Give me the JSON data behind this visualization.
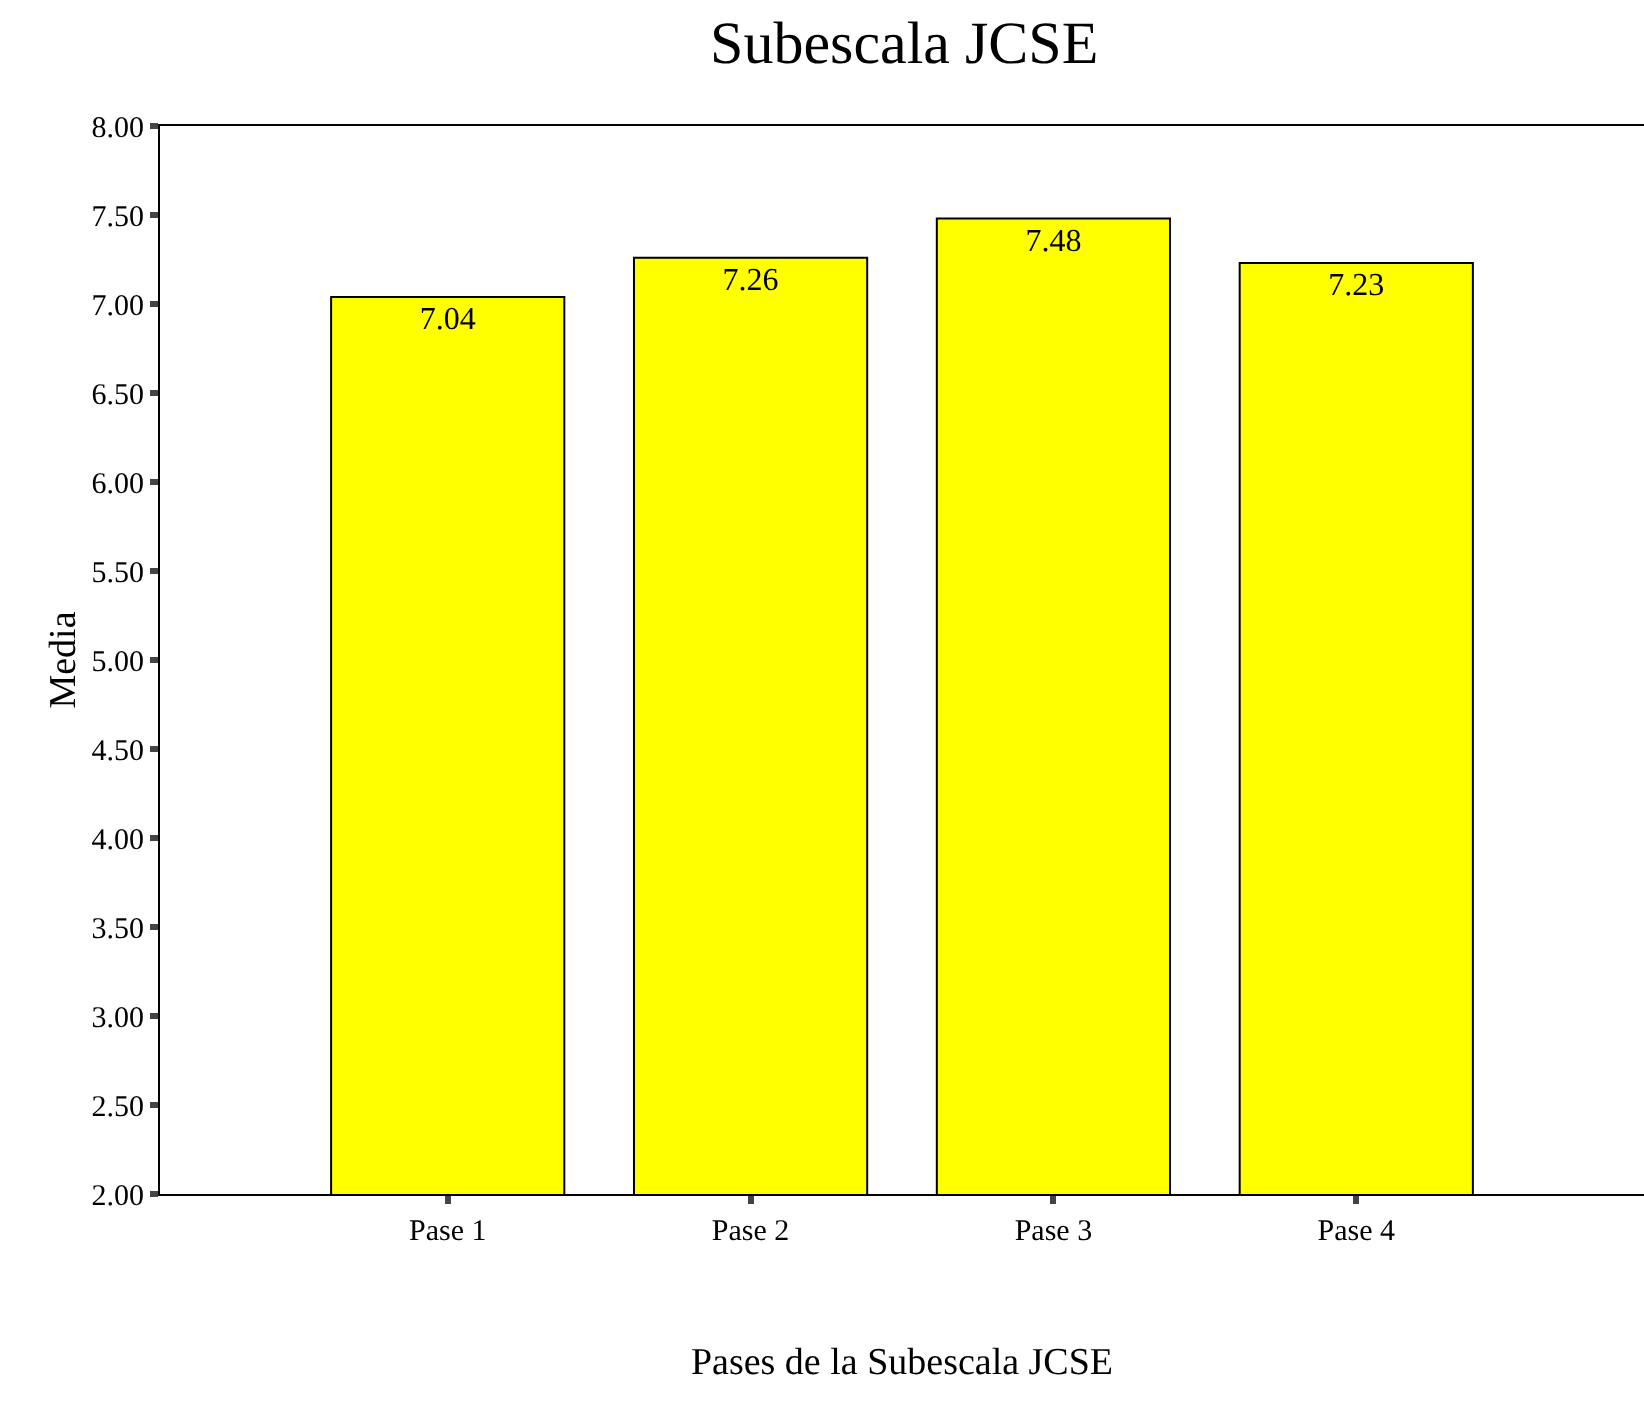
{
  "chart_data": {
    "type": "bar",
    "title": "Subescala JCSE",
    "xlabel": "Pases de la Subescala JCSE",
    "ylabel": "Media",
    "categories": [
      "Pase 1",
      "Pase 2",
      "Pase 3",
      "Pase 4"
    ],
    "values": [
      7.04,
      7.26,
      7.48,
      7.23
    ],
    "color": "#ffff00",
    "ylim": [
      2.0,
      8.0
    ],
    "yticks": [
      {
        "value": 2.0,
        "label": "2.00"
      },
      {
        "value": 2.5,
        "label": "2.50"
      },
      {
        "value": 3.0,
        "label": "3.00"
      },
      {
        "value": 3.5,
        "label": "3.50"
      },
      {
        "value": 4.0,
        "label": "4.00"
      },
      {
        "value": 4.5,
        "label": "4.50"
      },
      {
        "value": 5.0,
        "label": "5.00"
      },
      {
        "value": 5.5,
        "label": "5.50"
      },
      {
        "value": 6.0,
        "label": "6.00"
      },
      {
        "value": 6.5,
        "label": "6.50"
      },
      {
        "value": 7.0,
        "label": "7.00"
      },
      {
        "value": 7.5,
        "label": "7.50"
      },
      {
        "value": 8.0,
        "label": "8.00"
      }
    ],
    "data_labels": true
  }
}
